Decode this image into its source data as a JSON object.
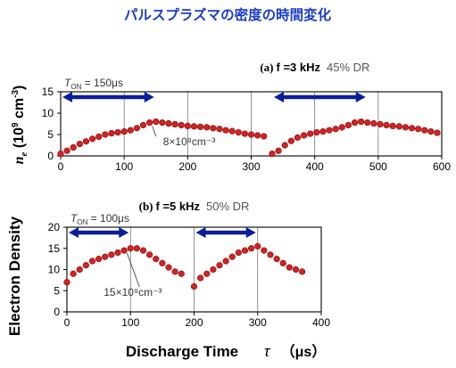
{
  "page_title": "パルスプラズマの密度の時間変化",
  "shared_xlabel": "Discharge Time",
  "shared_xlabel_symbol": "τ",
  "shared_xlabel_unit": "（μs）",
  "shared_ylabel": "Electron Density",
  "chart_data": [
    {
      "type": "scatter",
      "panel_label": "(a)",
      "freq_label": "f =3 kHz",
      "dr_label": "45% DR",
      "ylabel": "n_e (10^9 cm^-3)",
      "xlim": [
        0,
        600
      ],
      "ylim": [
        0,
        15
      ],
      "xticks": [
        0,
        100,
        200,
        300,
        400,
        500,
        600
      ],
      "yticks": [
        0,
        5,
        10,
        15
      ],
      "grid": "vertical-only",
      "ton_label": "T_ON = 150μs",
      "ton_prefix": "T",
      "ton_sub": "ON",
      "ton_rest": " = 150μs",
      "on_intervals": [
        [
          0,
          150
        ],
        [
          333,
          483
        ]
      ],
      "annotation": "8×10⁹cm⁻³",
      "annotation_target": [
        150,
        8
      ],
      "x": [
        0,
        10,
        20,
        30,
        40,
        50,
        60,
        70,
        80,
        90,
        100,
        110,
        120,
        130,
        140,
        150,
        160,
        170,
        180,
        190,
        200,
        210,
        220,
        230,
        240,
        250,
        260,
        270,
        280,
        290,
        300,
        310,
        320,
        333,
        343,
        353,
        363,
        373,
        383,
        393,
        403,
        413,
        423,
        433,
        443,
        453,
        463,
        473,
        483,
        493,
        503,
        513,
        523,
        533,
        543,
        553,
        563,
        573,
        583,
        593
      ],
      "y": [
        0.5,
        1.2,
        2.0,
        2.8,
        3.4,
        4.0,
        4.5,
        5.0,
        5.3,
        5.5,
        5.7,
        6.0,
        6.5,
        7.2,
        7.8,
        8.0,
        7.8,
        7.6,
        7.4,
        7.2,
        7.0,
        6.9,
        6.8,
        6.7,
        6.5,
        6.3,
        6.0,
        5.8,
        5.5,
        5.2,
        5.0,
        4.8,
        4.6,
        0.5,
        1.2,
        2.5,
        3.5,
        4.3,
        4.8,
        5.2,
        5.5,
        5.7,
        6.0,
        6.3,
        6.7,
        7.2,
        7.8,
        8.0,
        7.8,
        7.6,
        7.4,
        7.2,
        7.0,
        6.9,
        6.7,
        6.5,
        6.3,
        6.0,
        5.7,
        5.4
      ]
    },
    {
      "type": "scatter",
      "panel_label": "(b)",
      "freq_label": "f =5 kHz",
      "dr_label": "50% DR",
      "ylabel": "Electron Density",
      "xlim": [
        0,
        400
      ],
      "ylim": [
        0,
        20
      ],
      "xticks": [
        0,
        100,
        200,
        300,
        400
      ],
      "yticks": [
        0,
        5,
        10,
        15,
        20
      ],
      "grid": "vertical-only",
      "ton_label": "T_ON = 100μs",
      "ton_prefix": "T",
      "ton_sub": "ON",
      "ton_rest": " = 100μs",
      "on_intervals": [
        [
          0,
          100
        ],
        [
          200,
          300
        ]
      ],
      "annotation": "15×10⁹cm⁻³",
      "annotation_target": [
        100,
        15
      ],
      "x": [
        0,
        10,
        20,
        30,
        40,
        50,
        60,
        70,
        80,
        90,
        100,
        110,
        120,
        130,
        140,
        150,
        160,
        170,
        180,
        200,
        210,
        220,
        230,
        240,
        250,
        260,
        270,
        280,
        290,
        300,
        310,
        320,
        330,
        340,
        350,
        360,
        370
      ],
      "y": [
        7.0,
        9.0,
        10.0,
        11.0,
        12.0,
        12.5,
        13.0,
        13.5,
        14.0,
        14.5,
        15.0,
        15.0,
        14.5,
        13.5,
        12.5,
        11.5,
        10.5,
        9.5,
        9.0,
        6.0,
        8.0,
        9.0,
        10.0,
        11.0,
        12.0,
        13.0,
        14.0,
        14.5,
        15.0,
        15.5,
        14.5,
        13.5,
        12.5,
        11.5,
        10.5,
        10.0,
        9.5
      ]
    }
  ]
}
